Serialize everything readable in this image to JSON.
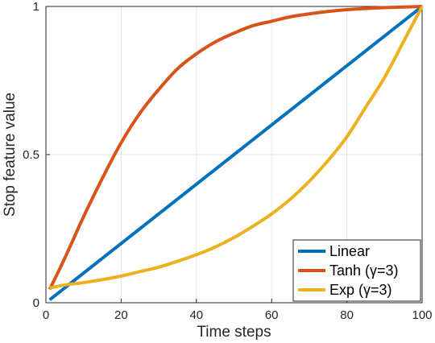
{
  "chart_data": {
    "type": "line",
    "xlabel": "Time steps",
    "ylabel": "Stop feature value",
    "xlim": [
      0,
      100
    ],
    "ylim": [
      0,
      1
    ],
    "xticks": [
      0,
      20,
      40,
      60,
      80,
      100
    ],
    "yticks": [
      0,
      0.5,
      1
    ],
    "ytick_labels": [
      "0",
      "0.5",
      "1"
    ],
    "grid": true,
    "legend_position": "bottom-right",
    "x": [
      1,
      5,
      10,
      15,
      20,
      25,
      30,
      35,
      40,
      45,
      50,
      55,
      60,
      65,
      70,
      75,
      80,
      85,
      90,
      95,
      100
    ],
    "series": [
      {
        "name": "Linear",
        "color": "#0072BD",
        "values": [
          0.01,
          0.05,
          0.1,
          0.15,
          0.2,
          0.25,
          0.3,
          0.35,
          0.4,
          0.45,
          0.5,
          0.55,
          0.6,
          0.65,
          0.7,
          0.75,
          0.8,
          0.85,
          0.9,
          0.95,
          1.0
        ]
      },
      {
        "name": "Tanh (γ=3)",
        "color": "#D95319",
        "values": [
          0.045,
          0.15,
          0.29,
          0.42,
          0.54,
          0.64,
          0.72,
          0.79,
          0.84,
          0.88,
          0.91,
          0.935,
          0.95,
          0.965,
          0.975,
          0.983,
          0.989,
          0.993,
          0.996,
          0.998,
          1.0
        ]
      },
      {
        "name": "Exp (γ=3)",
        "color": "#EDB120",
        "values": [
          0.05,
          0.06,
          0.068,
          0.078,
          0.09,
          0.105,
          0.12,
          0.14,
          0.162,
          0.188,
          0.22,
          0.258,
          0.3,
          0.35,
          0.41,
          0.48,
          0.56,
          0.66,
          0.76,
          0.88,
          1.0
        ]
      }
    ]
  }
}
